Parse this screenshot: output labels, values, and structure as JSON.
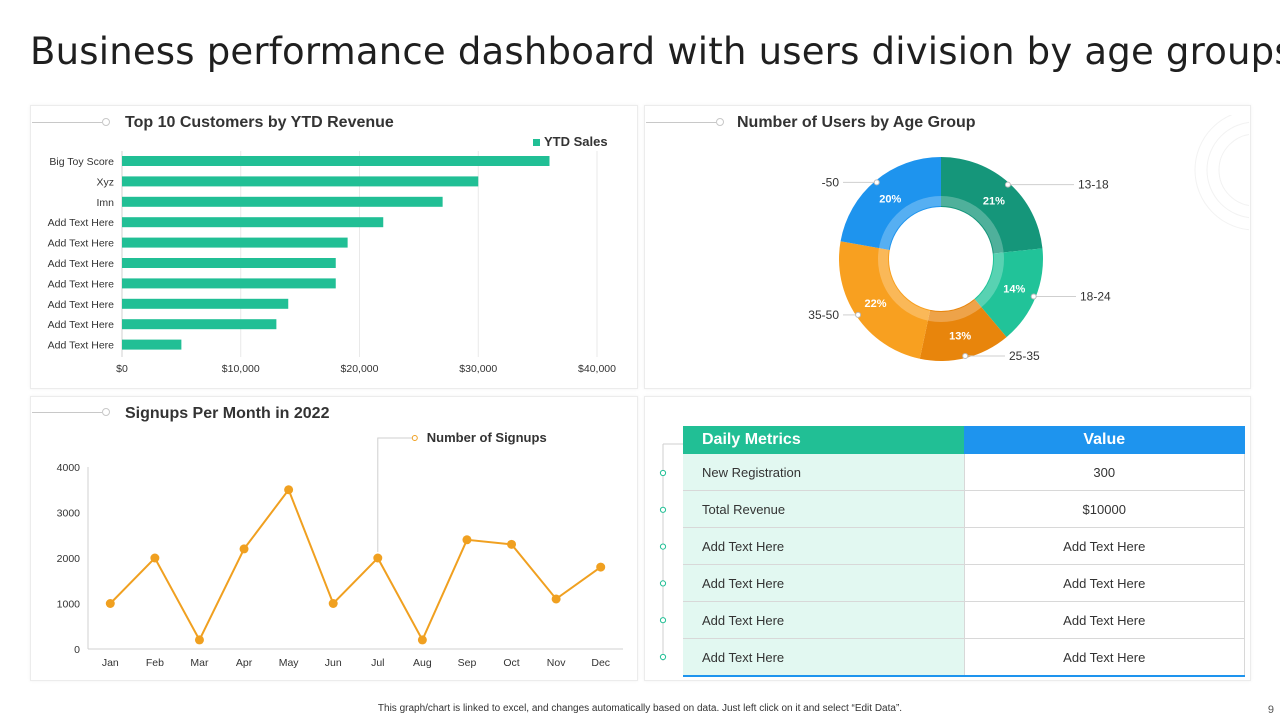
{
  "title": "Business performance dashboard with users division by age groups",
  "customers_panel": {
    "title": "Top 10 Customers by YTD Revenue",
    "legend": "YTD Sales"
  },
  "age_panel": {
    "title": "Number of Users by Age Group"
  },
  "signups_panel": {
    "title": "Signups Per Month in 2022",
    "legend": "Number of Signups"
  },
  "metrics_table": {
    "headers": [
      "Daily Metrics",
      "Value"
    ],
    "rows": [
      [
        "New Registration",
        "300"
      ],
      [
        "Total Revenue",
        "$10000"
      ],
      [
        "Add Text Here",
        "Add Text Here"
      ],
      [
        "Add Text Here",
        "Add Text Here"
      ],
      [
        "Add Text Here",
        "Add Text Here"
      ],
      [
        "Add Text Here",
        "Add Text Here"
      ]
    ]
  },
  "colors": {
    "green": "#21bf95",
    "blue": "#1e94ee",
    "orange": "#f0a020"
  },
  "footnote": "This graph/chart is linked to excel, and changes automatically based on data. Just left click on it and select “Edit Data”.",
  "page_number": "9",
  "chart_data": [
    {
      "type": "bar",
      "orientation": "horizontal",
      "title": "Top 10 Customers by YTD Revenue",
      "categories": [
        "Big Toy Score",
        "Xyz",
        "Imn",
        "Add Text Here",
        "Add Text Here",
        "Add Text Here",
        "Add Text Here",
        "Add Text Here",
        "Add Text Here",
        "Add Text Here"
      ],
      "series": [
        {
          "name": "YTD Sales",
          "values": [
            36000,
            30000,
            27000,
            22000,
            19000,
            18000,
            18000,
            14000,
            13000,
            5000
          ]
        }
      ],
      "xlim": [
        0,
        40000
      ],
      "xticks": [
        0,
        10000,
        20000,
        30000,
        40000
      ],
      "xtick_labels": [
        "$0",
        "$10,000",
        "$20,000",
        "$30,000",
        "$40,000"
      ],
      "legend": "top-right",
      "color": "#21bf95"
    },
    {
      "type": "pie",
      "donut": true,
      "title": "Number of Users by Age Group",
      "slices": [
        {
          "label": "13-18",
          "value": 21,
          "pct_label": "21%",
          "color": "#15967a"
        },
        {
          "label": "18-24",
          "value": 14,
          "pct_label": "14%",
          "color": "#21c399"
        },
        {
          "label": "25-35",
          "value": 13,
          "pct_label": "13%",
          "color": "#e8850c"
        },
        {
          "label": "35-50",
          "value": 22,
          "pct_label": "22%",
          "color": "#f8a020"
        },
        {
          "label": "-50",
          "value": 20,
          "pct_label": "20%",
          "color": "#1e94ee"
        }
      ]
    },
    {
      "type": "line",
      "title": "Signups Per Month in 2022",
      "categories": [
        "Jan",
        "Feb",
        "Mar",
        "Apr",
        "May",
        "Jun",
        "Jul",
        "Aug",
        "Sep",
        "Oct",
        "Nov",
        "Dec"
      ],
      "series": [
        {
          "name": "Number of Signups",
          "values": [
            1000,
            2000,
            200,
            2200,
            3500,
            1000,
            2000,
            200,
            2400,
            2300,
            1100,
            1800
          ]
        }
      ],
      "ylim": [
        0,
        4000
      ],
      "yticks": [
        0,
        1000,
        2000,
        3000,
        4000
      ],
      "ytick_labels": [
        "0",
        "1000",
        "2000",
        "3000",
        "4000"
      ],
      "color": "#f0a020"
    }
  ]
}
